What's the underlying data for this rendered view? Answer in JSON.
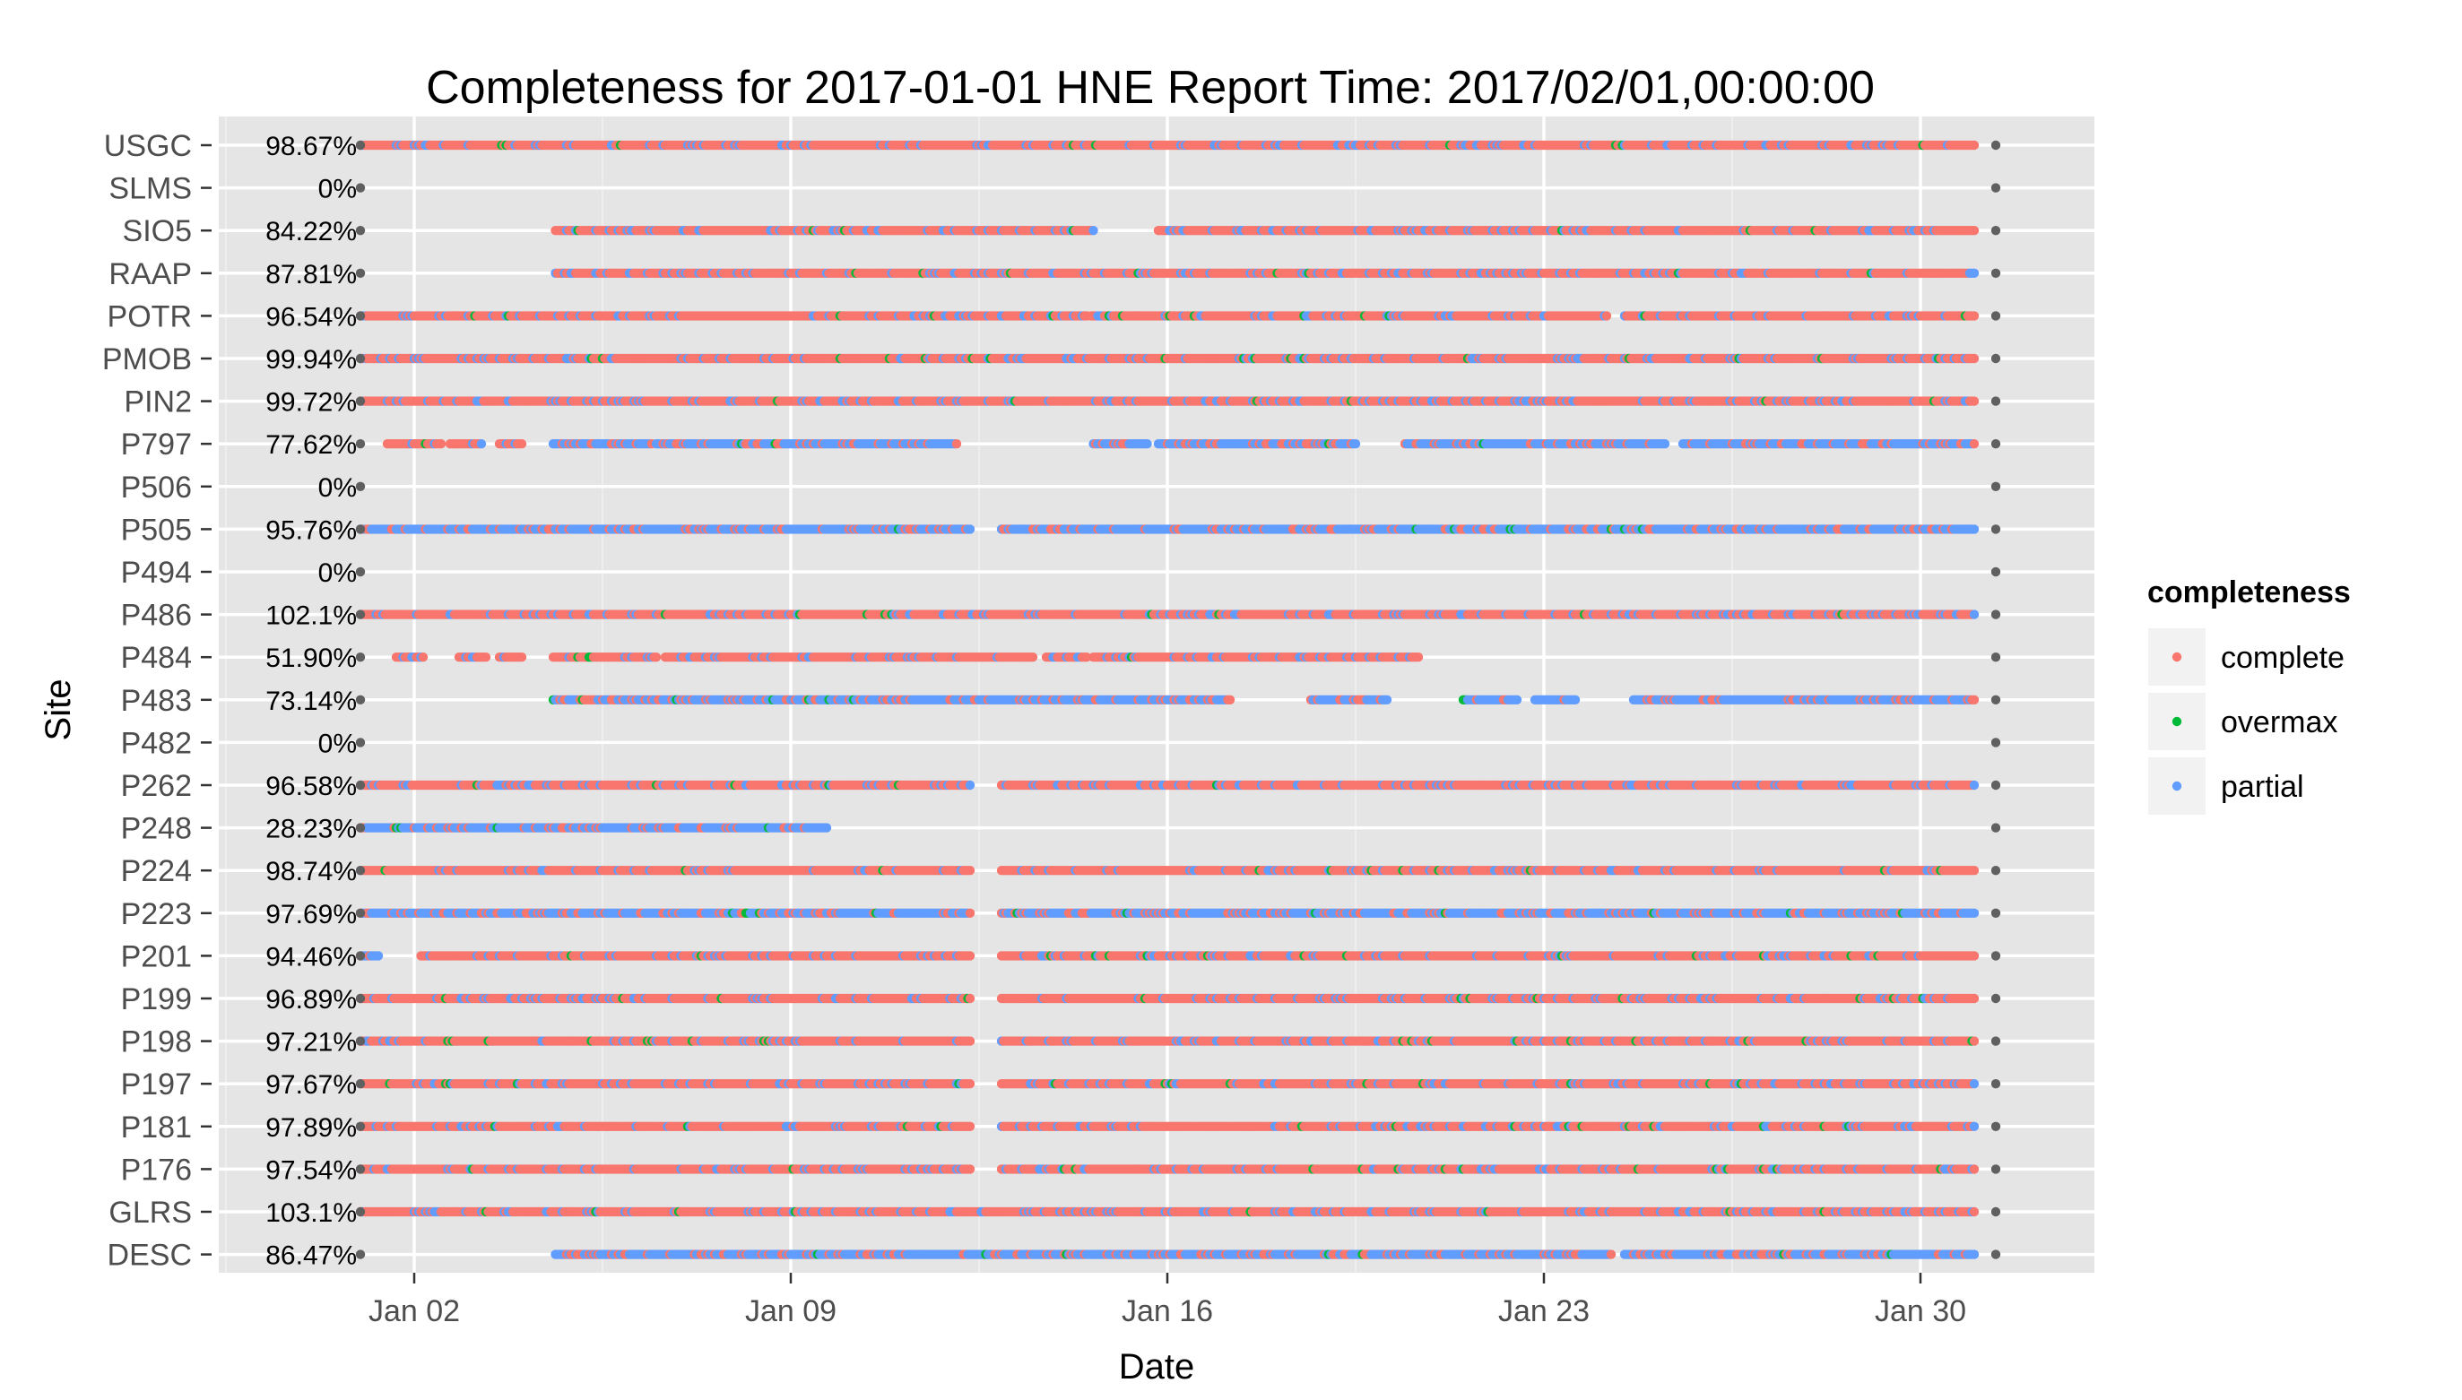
{
  "chart_data": {
    "type": "scatter",
    "title": "Completeness for  2017-01-01 HNE  Report Time:  2017/02/01,00:00:00",
    "xlabel": "Date",
    "ylabel": "Site",
    "xlim": [
      "2016-12-31",
      "2017-02-01"
    ],
    "x_ticks": [
      {
        "date": "2017-01-02",
        "label": "Jan 02"
      },
      {
        "date": "2017-01-09",
        "label": "Jan 09"
      },
      {
        "date": "2017-01-16",
        "label": "Jan 16"
      },
      {
        "date": "2017-01-23",
        "label": "Jan 23"
      },
      {
        "date": "2017-01-30",
        "label": "Jan 30"
      }
    ],
    "grid": true,
    "legend": {
      "title": "completeness",
      "placement": "right",
      "entries": [
        {
          "name": "complete",
          "color": "#F8766D"
        },
        {
          "name": "overmax",
          "color": "#00BA38"
        },
        {
          "name": "partial",
          "color": "#619CFF"
        }
      ]
    },
    "endpoint_color": "#606060",
    "sites": [
      {
        "name": "USGC",
        "pct": "98.67%",
        "segments": [
          {
            "start": "2017-01-01",
            "end": "2017-01-31",
            "mix": "complete"
          }
        ]
      },
      {
        "name": "SLMS",
        "pct": "0%",
        "segments": []
      },
      {
        "name": "SIO5",
        "pct": "84.22%",
        "segments": [
          {
            "start": "2017-01-04 15:00",
            "end": "2017-01-14 15:00",
            "mix": "complete"
          },
          {
            "start": "2017-01-15 20:00",
            "end": "2017-01-31",
            "mix": "complete"
          }
        ]
      },
      {
        "name": "RAAP",
        "pct": "87.81%",
        "segments": [
          {
            "start": "2017-01-04 15:00",
            "end": "2017-01-31",
            "mix": "complete"
          }
        ]
      },
      {
        "name": "POTR",
        "pct": "96.54%",
        "segments": [
          {
            "start": "2017-01-01",
            "end": "2017-01-14 12:00",
            "mix": "complete"
          },
          {
            "start": "2017-01-14 14:00",
            "end": "2017-01-24 04:00",
            "mix": "complete"
          },
          {
            "start": "2017-01-24 12:00",
            "end": "2017-01-31",
            "mix": "complete"
          }
        ]
      },
      {
        "name": "PMOB",
        "pct": "99.94%",
        "segments": [
          {
            "start": "2017-01-01",
            "end": "2017-01-31",
            "mix": "complete"
          }
        ]
      },
      {
        "name": "PIN2",
        "pct": "99.72%",
        "segments": [
          {
            "start": "2017-01-01",
            "end": "2017-01-31",
            "mix": "complete"
          }
        ]
      },
      {
        "name": "P797",
        "pct": "77.62%",
        "segments": [
          {
            "start": "2017-01-01 12:00",
            "end": "2017-01-02 12:00",
            "mix": "complete"
          },
          {
            "start": "2017-01-02 16:00",
            "end": "2017-01-03 06:00",
            "mix": "complete"
          },
          {
            "start": "2017-01-03 14:00",
            "end": "2017-01-04 00:00",
            "mix": "complete"
          },
          {
            "start": "2017-01-04 14:00",
            "end": "2017-01-06 10:00",
            "mix": "partial"
          },
          {
            "start": "2017-01-06 12:00",
            "end": "2017-01-12 02:00",
            "mix": "partial"
          },
          {
            "start": "2017-01-14 15:00",
            "end": "2017-01-15 15:00",
            "mix": "partial"
          },
          {
            "start": "2017-01-15 20:00",
            "end": "2017-01-19 12:00",
            "mix": "partial"
          },
          {
            "start": "2017-01-20 10:00",
            "end": "2017-01-25 06:00",
            "mix": "partial"
          },
          {
            "start": "2017-01-25 14:00",
            "end": "2017-01-31",
            "mix": "partial"
          }
        ]
      },
      {
        "name": "P506",
        "pct": "0%",
        "segments": []
      },
      {
        "name": "P505",
        "pct": "95.76%",
        "segments": [
          {
            "start": "2017-01-01",
            "end": "2017-01-12 08:00",
            "mix": "partial"
          },
          {
            "start": "2017-01-12 22:00",
            "end": "2017-01-31",
            "mix": "partial"
          }
        ]
      },
      {
        "name": "P494",
        "pct": "0%",
        "segments": []
      },
      {
        "name": "P486",
        "pct": "102.1%",
        "segments": [
          {
            "start": "2017-01-01",
            "end": "2017-01-31",
            "mix": "complete"
          }
        ]
      },
      {
        "name": "P484",
        "pct": "51.90%",
        "segments": [
          {
            "start": "2017-01-01 16:00",
            "end": "2017-01-02 04:00",
            "mix": "complete"
          },
          {
            "start": "2017-01-02 20:00",
            "end": "2017-01-03 08:00",
            "mix": "complete"
          },
          {
            "start": "2017-01-03 14:00",
            "end": "2017-01-04 00:00",
            "mix": "complete"
          },
          {
            "start": "2017-01-04 14:00",
            "end": "2017-01-06 12:00",
            "mix": "complete"
          },
          {
            "start": "2017-01-06 16:00",
            "end": "2017-01-13 12:00",
            "mix": "complete"
          },
          {
            "start": "2017-01-13 18:00",
            "end": "2017-01-14 12:00",
            "mix": "complete"
          },
          {
            "start": "2017-01-14 15:00",
            "end": "2017-01-20 16:00",
            "mix": "complete"
          }
        ]
      },
      {
        "name": "P483",
        "pct": "73.14%",
        "segments": [
          {
            "start": "2017-01-04 14:00",
            "end": "2017-01-17 04:00",
            "mix": "partial"
          },
          {
            "start": "2017-01-18 16:00",
            "end": "2017-01-20 02:00",
            "mix": "partial"
          },
          {
            "start": "2017-01-21 12:00",
            "end": "2017-01-22 12:00",
            "mix": "partial"
          },
          {
            "start": "2017-01-22 20:00",
            "end": "2017-01-23 14:00",
            "mix": "partial"
          },
          {
            "start": "2017-01-24 16:00",
            "end": "2017-01-31",
            "mix": "partial"
          }
        ]
      },
      {
        "name": "P482",
        "pct": "0%",
        "segments": []
      },
      {
        "name": "P262",
        "pct": "96.58%",
        "segments": [
          {
            "start": "2017-01-01",
            "end": "2017-01-12 08:00",
            "mix": "complete"
          },
          {
            "start": "2017-01-12 22:00",
            "end": "2017-01-31",
            "mix": "complete"
          }
        ]
      },
      {
        "name": "P248",
        "pct": "28.23%",
        "segments": [
          {
            "start": "2017-01-01",
            "end": "2017-01-09 16:00",
            "mix": "partial"
          }
        ]
      },
      {
        "name": "P224",
        "pct": "98.74%",
        "segments": [
          {
            "start": "2017-01-01",
            "end": "2017-01-12 08:00",
            "mix": "complete"
          },
          {
            "start": "2017-01-12 22:00",
            "end": "2017-01-31",
            "mix": "complete"
          }
        ]
      },
      {
        "name": "P223",
        "pct": "97.69%",
        "segments": [
          {
            "start": "2017-01-01",
            "end": "2017-01-12 08:00",
            "mix": "partial"
          },
          {
            "start": "2017-01-12 22:00",
            "end": "2017-01-31",
            "mix": "partial"
          }
        ]
      },
      {
        "name": "P201",
        "pct": "94.46%",
        "segments": [
          {
            "start": "2017-01-01",
            "end": "2017-01-01 08:00",
            "mix": "partial"
          },
          {
            "start": "2017-01-02 03:00",
            "end": "2017-01-12 08:00",
            "mix": "complete"
          },
          {
            "start": "2017-01-12 22:00",
            "end": "2017-01-31",
            "mix": "complete"
          }
        ]
      },
      {
        "name": "P199",
        "pct": "96.89%",
        "segments": [
          {
            "start": "2017-01-01",
            "end": "2017-01-12 08:00",
            "mix": "complete"
          },
          {
            "start": "2017-01-12 22:00",
            "end": "2017-01-31",
            "mix": "complete"
          }
        ]
      },
      {
        "name": "P198",
        "pct": "97.21%",
        "segments": [
          {
            "start": "2017-01-01",
            "end": "2017-01-12 08:00",
            "mix": "complete"
          },
          {
            "start": "2017-01-12 22:00",
            "end": "2017-01-31",
            "mix": "complete"
          }
        ]
      },
      {
        "name": "P197",
        "pct": "97.67%",
        "segments": [
          {
            "start": "2017-01-01",
            "end": "2017-01-12 08:00",
            "mix": "complete"
          },
          {
            "start": "2017-01-12 22:00",
            "end": "2017-01-31",
            "mix": "complete"
          }
        ]
      },
      {
        "name": "P181",
        "pct": "97.89%",
        "segments": [
          {
            "start": "2017-01-01",
            "end": "2017-01-12 08:00",
            "mix": "complete"
          },
          {
            "start": "2017-01-12 22:00",
            "end": "2017-01-31",
            "mix": "complete"
          }
        ]
      },
      {
        "name": "P176",
        "pct": "97.54%",
        "segments": [
          {
            "start": "2017-01-01",
            "end": "2017-01-12 08:00",
            "mix": "complete"
          },
          {
            "start": "2017-01-12 22:00",
            "end": "2017-01-31",
            "mix": "complete"
          }
        ]
      },
      {
        "name": "GLRS",
        "pct": "103.1%",
        "segments": [
          {
            "start": "2017-01-01",
            "end": "2017-01-31",
            "mix": "complete"
          }
        ]
      },
      {
        "name": "DESC",
        "pct": "86.47%",
        "segments": [
          {
            "start": "2017-01-04 15:00",
            "end": "2017-01-24 06:00",
            "mix": "partial"
          },
          {
            "start": "2017-01-24 12:00",
            "end": "2017-01-31",
            "mix": "partial"
          }
        ]
      }
    ]
  }
}
